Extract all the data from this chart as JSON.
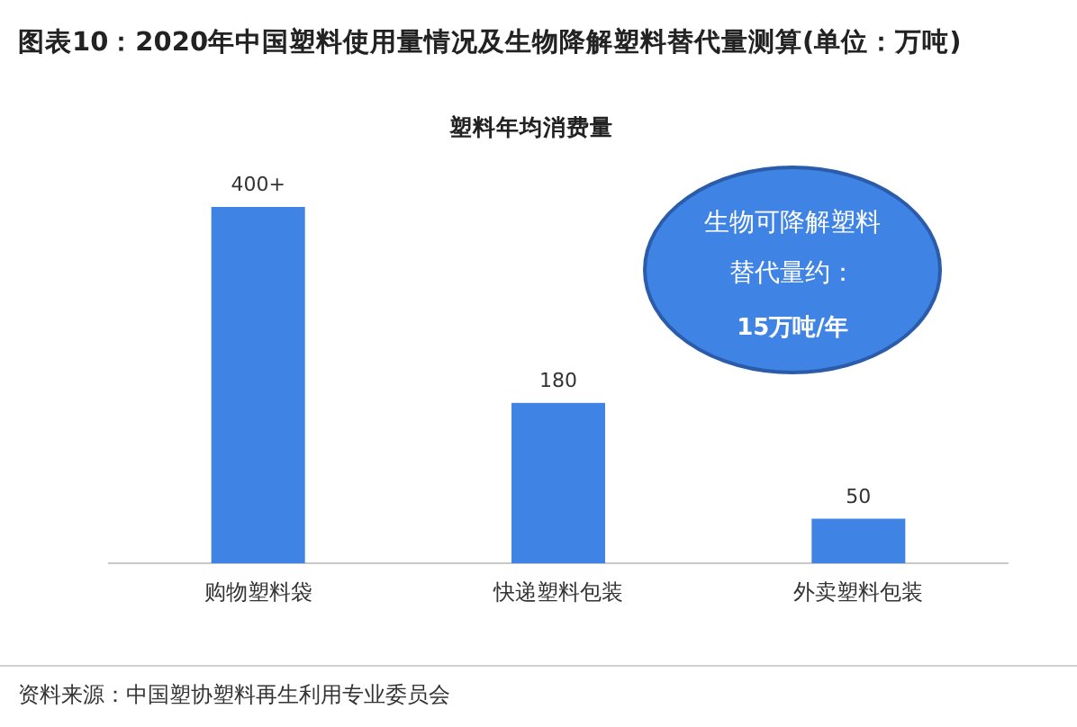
{
  "chart_data": {
    "type": "bar",
    "title": "图表10：2020年中国塑料使用量情况及生物降解塑料替代量测算(单位：万吨)",
    "subtitle": "塑料年均消费量",
    "categories": [
      "购物塑料袋",
      "快递塑料包装",
      "外卖塑料包装"
    ],
    "values": [
      400,
      180,
      50
    ],
    "value_labels": [
      "400+",
      "180",
      "50"
    ],
    "color": "#3f83e4",
    "annotations": [
      "生物可降解塑料",
      "替代量约：",
      "15万吨/年",
      "资料来源：中国塑协塑料再生利用专业委员会"
    ]
  }
}
